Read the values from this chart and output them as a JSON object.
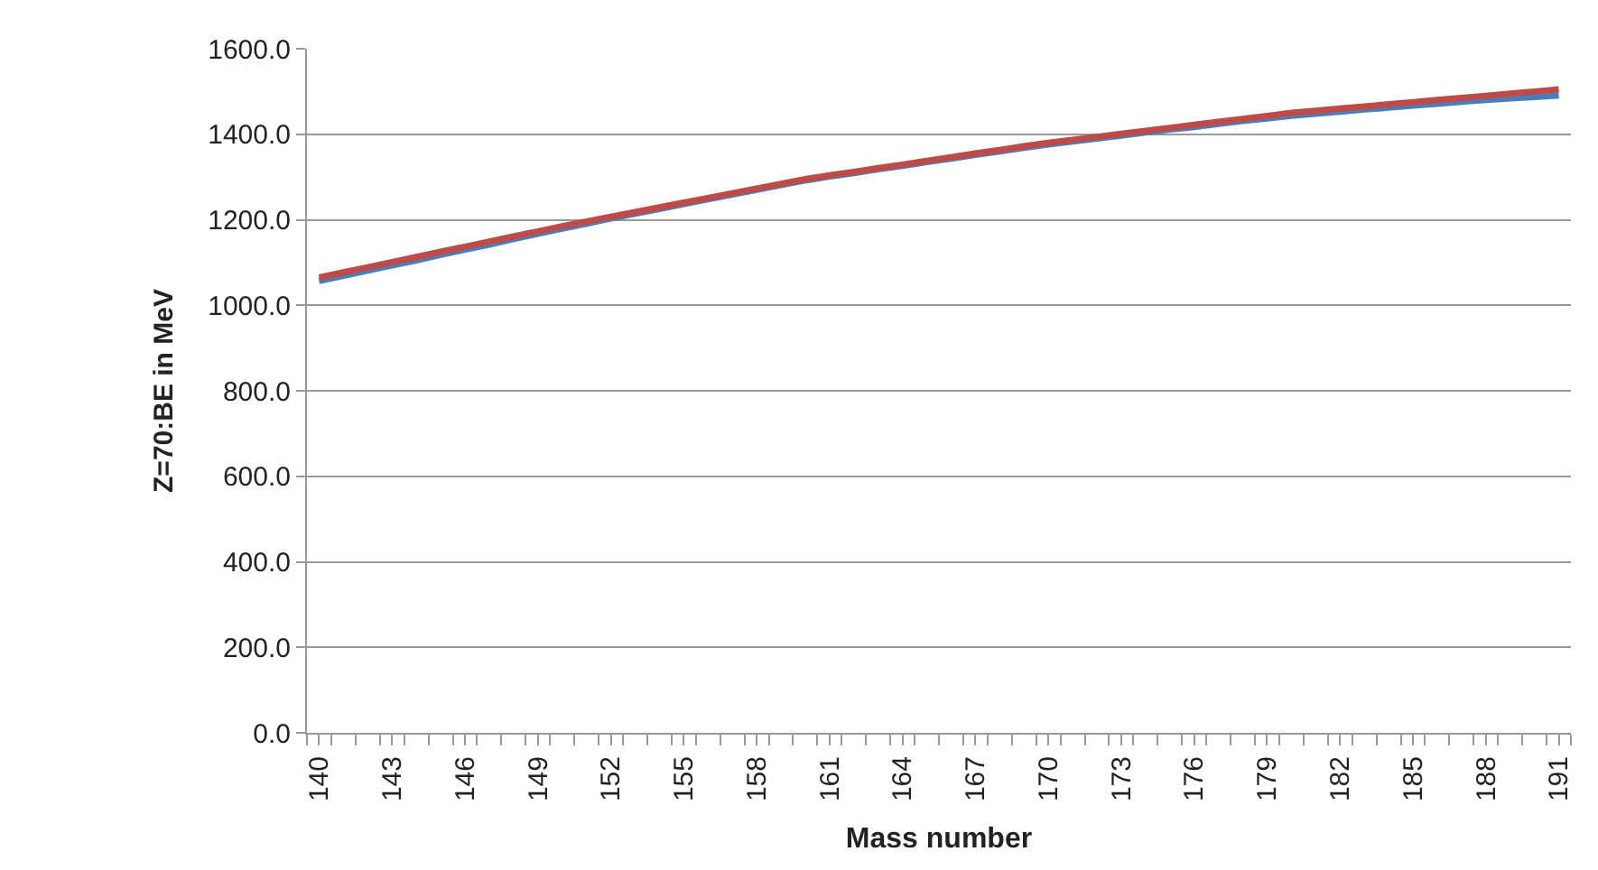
{
  "chart_data": {
    "type": "line",
    "xlabel": "Mass number",
    "ylabel": "Z=70:BE in MeV",
    "categories": [
      "140",
      null,
      null,
      "143",
      null,
      null,
      "146",
      null,
      null,
      "149",
      null,
      null,
      "152",
      null,
      null,
      "155",
      null,
      null,
      "158",
      null,
      null,
      "161",
      null,
      null,
      "164",
      null,
      null,
      "167",
      null,
      null,
      "170",
      null,
      null,
      "173",
      null,
      null,
      "176",
      null,
      null,
      "179",
      null,
      null,
      "182",
      null,
      null,
      "185",
      null,
      null,
      "188",
      null,
      null,
      "191"
    ],
    "series": [
      {
        "color": "#4a7ebb",
        "values": [
          1057,
          1069,
          1081,
          1093,
          1105,
          1118,
          1130,
          1142,
          1155,
          1167,
          1179,
          1191,
          1203,
          1214,
          1225,
          1237,
          1248,
          1259,
          1270,
          1281,
          1292,
          1301,
          1309,
          1318,
          1326,
          1335,
          1343,
          1352,
          1360,
          1368,
          1376,
          1383,
          1390,
          1397,
          1404,
          1411,
          1417,
          1424,
          1431,
          1437,
          1443,
          1448,
          1453,
          1458,
          1462,
          1467,
          1471,
          1476,
          1480,
          1484,
          1487,
          1491
        ]
      },
      {
        "color": "#be4b48",
        "values": [
          1065,
          1077,
          1089,
          1101,
          1113,
          1125,
          1137,
          1149,
          1161,
          1173,
          1185,
          1196,
          1207,
          1218,
          1229,
          1240,
          1251,
          1262,
          1273,
          1284,
          1295,
          1304,
          1312,
          1321,
          1329,
          1338,
          1346,
          1355,
          1363,
          1372,
          1380,
          1387,
          1394,
          1401,
          1408,
          1415,
          1422,
          1429,
          1436,
          1443,
          1450,
          1455,
          1460,
          1465,
          1470,
          1475,
          1480,
          1485,
          1490,
          1495,
          1500,
          1505
        ]
      }
    ],
    "ylim": [
      0,
      1600
    ],
    "yticks": [
      {
        "value": 0,
        "label": "0.0"
      },
      {
        "value": 200,
        "label": "200.0"
      },
      {
        "value": 400,
        "label": "400.0"
      },
      {
        "value": 600,
        "label": "600.0"
      },
      {
        "value": 800,
        "label": "800.0"
      },
      {
        "value": 1000,
        "label": "1000.0"
      },
      {
        "value": 1200,
        "label": "1200.0"
      },
      {
        "value": 1400,
        "label": "1400.0"
      },
      {
        "value": 1600,
        "label": "1600.0"
      }
    ],
    "grid": "y",
    "marker": "none",
    "line_style": "solid"
  }
}
